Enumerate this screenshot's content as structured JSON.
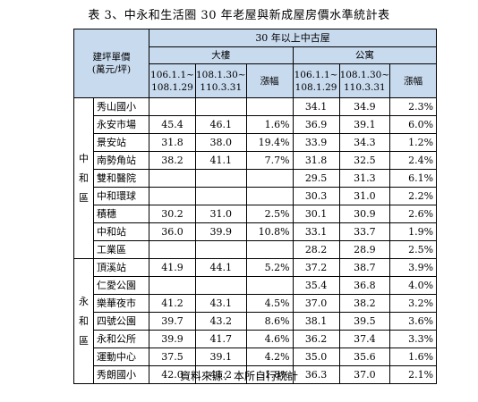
{
  "title": "表 3、中永和生活圈 30 年老屋與新成屋房價水準統計表",
  "header": {
    "row_label_line1": "建坪單價",
    "row_label_line2": "(萬元/坪)",
    "group": "30 年以上中古屋",
    "building": "大樓",
    "apartment": "公寓",
    "period1_line1": "106.1.1~",
    "period1_line2": "108.1.29",
    "period2_line1": "108.1.30~",
    "period2_line2": "110.3.31",
    "change": "漲幅"
  },
  "districts": [
    {
      "name_chars": [
        "中",
        "和",
        "區"
      ],
      "rows": [
        {
          "name": "秀山國小",
          "b1": "",
          "b2": "",
          "bc": "",
          "a1": "34.1",
          "a2": "34.9",
          "ac": "2.3%"
        },
        {
          "name": "永安市場",
          "b1": "45.4",
          "b2": "46.1",
          "bc": "1.6%",
          "a1": "36.9",
          "a2": "39.1",
          "ac": "6.0%"
        },
        {
          "name": "景安站",
          "b1": "31.8",
          "b2": "38.0",
          "bc": "19.4%",
          "a1": "33.9",
          "a2": "34.3",
          "ac": "1.2%"
        },
        {
          "name": "南勢角站",
          "b1": "38.2",
          "b2": "41.1",
          "bc": "7.7%",
          "a1": "31.8",
          "a2": "32.5",
          "ac": "2.4%"
        },
        {
          "name": "雙和醫院",
          "b1": "",
          "b2": "",
          "bc": "",
          "a1": "29.5",
          "a2": "31.3",
          "ac": "6.1%"
        },
        {
          "name": "中和環球",
          "b1": "",
          "b2": "",
          "bc": "",
          "a1": "30.3",
          "a2": "31.0",
          "ac": "2.2%"
        },
        {
          "name": "積穗",
          "b1": "30.2",
          "b2": "31.0",
          "bc": "2.5%",
          "a1": "30.1",
          "a2": "30.9",
          "ac": "2.6%"
        },
        {
          "name": "中和站",
          "b1": "36.0",
          "b2": "39.9",
          "bc": "10.8%",
          "a1": "33.1",
          "a2": "33.7",
          "ac": "1.9%"
        },
        {
          "name": "工業區",
          "b1": "",
          "b2": "",
          "bc": "",
          "a1": "28.2",
          "a2": "28.9",
          "ac": "2.5%"
        }
      ]
    },
    {
      "name_chars": [
        "永",
        "和",
        "區"
      ],
      "rows": [
        {
          "name": "頂溪站",
          "b1": "41.9",
          "b2": "44.1",
          "bc": "5.2%",
          "a1": "37.2",
          "a2": "38.7",
          "ac": "3.9%"
        },
        {
          "name": "仁愛公園",
          "b1": "",
          "b2": "",
          "bc": "",
          "a1": "35.4",
          "a2": "36.8",
          "ac": "4.0%"
        },
        {
          "name": "樂華夜市",
          "b1": "41.2",
          "b2": "43.1",
          "bc": "4.5%",
          "a1": "37.0",
          "a2": "38.2",
          "ac": "3.2%"
        },
        {
          "name": "四號公園",
          "b1": "39.7",
          "b2": "43.2",
          "bc": "8.6%",
          "a1": "38.1",
          "a2": "39.5",
          "ac": "3.6%"
        },
        {
          "name": "永和公所",
          "b1": "39.9",
          "b2": "41.7",
          "bc": "4.6%",
          "a1": "36.2",
          "a2": "37.4",
          "ac": "3.3%"
        },
        {
          "name": "運動中心",
          "b1": "37.5",
          "b2": "39.1",
          "bc": "4.2%",
          "a1": "35.0",
          "a2": "35.6",
          "ac": "1.6%"
        },
        {
          "name": "秀朗國小",
          "b1": "42.0",
          "b2": "41.2",
          "bc": "-1.8%",
          "a1": "36.3",
          "a2": "37.0",
          "ac": "2.1%"
        }
      ]
    }
  ],
  "source": "資料來源：本所自行統計",
  "colors": {
    "header_bg": "#c8daee",
    "border": "#000000"
  }
}
